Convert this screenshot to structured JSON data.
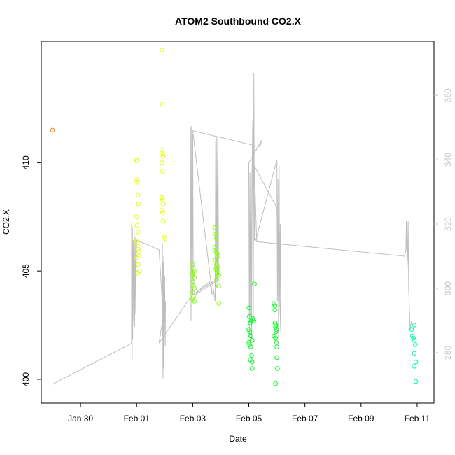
{
  "chart_data": {
    "type": "scatter",
    "title": "ATOM2 Southbound CO2.X",
    "xlabel": "Date",
    "ylabel": "CO2.X",
    "x_ticks": [
      {
        "value": 29.5,
        "label": "Jan 30"
      },
      {
        "value": 31.5,
        "label": "Feb 01"
      },
      {
        "value": 33.5,
        "label": "Feb 03"
      },
      {
        "value": 35.5,
        "label": "Feb 05"
      },
      {
        "value": 37.5,
        "label": "Feb 07"
      },
      {
        "value": 39.5,
        "label": "Feb 09"
      },
      {
        "value": 41.5,
        "label": "Feb 11"
      }
    ],
    "xlim": [
      28.1,
      42.1
    ],
    "ylim": [
      398.9,
      415.6
    ],
    "y_ticks_left": [
      400,
      405,
      410
    ],
    "y2lim": [
      264.3,
      376.8
    ],
    "y2_ticks_right": [
      280,
      300,
      320,
      340,
      360
    ],
    "grid": false,
    "colors": {
      "line": "#bebebe",
      "right_axis": "#c8c8c8",
      "orange": "#ff8000",
      "yellow": "#e6ff00",
      "lime": "#80ff00",
      "green": "#00ff20",
      "teal": "#00ffa0"
    },
    "scatter_series": [
      {
        "color": "#ff8000",
        "points": [
          [
            28.5,
            411.5
          ]
        ]
      },
      {
        "color": "#e6ff00",
        "points": [
          [
            31.5,
            410.1
          ],
          [
            31.52,
            410.1
          ],
          [
            31.5,
            409.2
          ],
          [
            31.53,
            409.1
          ],
          [
            31.55,
            408.5
          ],
          [
            31.57,
            408.1
          ],
          [
            31.5,
            407.5
          ],
          [
            31.52,
            407.1
          ],
          [
            31.55,
            406.8
          ],
          [
            31.5,
            406.4
          ],
          [
            31.53,
            406.3
          ],
          [
            31.56,
            406.0
          ],
          [
            31.58,
            405.9
          ],
          [
            31.6,
            405.7
          ],
          [
            31.52,
            405.6
          ],
          [
            31.56,
            405.3
          ],
          [
            31.6,
            405.0
          ],
          [
            31.54,
            404.9
          ],
          [
            32.4,
            415.2
          ],
          [
            32.42,
            412.7
          ],
          [
            32.4,
            410.6
          ],
          [
            32.43,
            410.4
          ],
          [
            32.45,
            410.3
          ],
          [
            32.4,
            410.0
          ],
          [
            32.43,
            409.6
          ],
          [
            32.4,
            408.4
          ],
          [
            32.43,
            408.3
          ],
          [
            32.45,
            408.1
          ],
          [
            32.4,
            407.8
          ],
          [
            32.43,
            407.7
          ],
          [
            32.45,
            407.3
          ],
          [
            32.5,
            406.6
          ],
          [
            32.52,
            406.5
          ]
        ]
      },
      {
        "color": "#80ff00",
        "points": [
          [
            33.5,
            405.3
          ],
          [
            33.52,
            405.1
          ],
          [
            33.55,
            405.0
          ],
          [
            33.5,
            404.9
          ],
          [
            33.52,
            404.8
          ],
          [
            33.56,
            404.7
          ],
          [
            33.5,
            404.5
          ],
          [
            33.53,
            404.3
          ],
          [
            33.56,
            404.2
          ],
          [
            33.5,
            404.0
          ],
          [
            33.53,
            403.8
          ],
          [
            33.5,
            403.7
          ],
          [
            33.56,
            403.6
          ],
          [
            34.3,
            407.0
          ],
          [
            34.33,
            406.7
          ],
          [
            34.35,
            406.5
          ],
          [
            34.3,
            406.1
          ],
          [
            34.33,
            405.9
          ],
          [
            34.37,
            405.8
          ],
          [
            34.4,
            405.7
          ],
          [
            34.3,
            405.5
          ],
          [
            34.35,
            405.3
          ],
          [
            34.4,
            405.2
          ],
          [
            34.33,
            405.1
          ],
          [
            34.37,
            405.0
          ],
          [
            34.4,
            404.9
          ],
          [
            34.43,
            404.8
          ],
          [
            34.35,
            404.6
          ],
          [
            34.43,
            404.3
          ],
          [
            34.43,
            403.5
          ]
        ]
      },
      {
        "color": "#00ff20",
        "points": [
          [
            35.5,
            403.3
          ],
          [
            35.52,
            402.9
          ],
          [
            35.55,
            402.6
          ],
          [
            35.5,
            402.3
          ],
          [
            35.53,
            402.2
          ],
          [
            35.57,
            402.0
          ],
          [
            35.6,
            402.7
          ],
          [
            35.5,
            401.7
          ],
          [
            35.53,
            401.6
          ],
          [
            35.57,
            401.5
          ],
          [
            35.6,
            401.1
          ],
          [
            35.55,
            400.9
          ],
          [
            35.62,
            400.8
          ],
          [
            35.62,
            400.5
          ],
          [
            35.7,
            404.4
          ],
          [
            35.65,
            402.8
          ],
          [
            35.68,
            402.7
          ],
          [
            35.62,
            401.8
          ],
          [
            36.4,
            403.5
          ],
          [
            36.43,
            403.4
          ],
          [
            36.43,
            403.2
          ],
          [
            36.45,
            402.4
          ],
          [
            36.48,
            402.3
          ],
          [
            36.4,
            402.0
          ],
          [
            36.45,
            401.9
          ],
          [
            36.48,
            401.7
          ],
          [
            36.5,
            401.5
          ],
          [
            36.5,
            401.0
          ],
          [
            36.52,
            400.5
          ],
          [
            36.45,
            399.8
          ],
          [
            36.47,
            402.2
          ],
          [
            36.44,
            402.6
          ],
          [
            36.46,
            402.5
          ]
        ]
      },
      {
        "color": "#00ffa0",
        "points": [
          [
            41.3,
            402.3
          ],
          [
            41.33,
            402.0
          ],
          [
            41.37,
            401.9
          ],
          [
            41.4,
            402.5
          ],
          [
            41.4,
            401.8
          ],
          [
            41.43,
            401.6
          ],
          [
            41.4,
            401.2
          ],
          [
            41.45,
            400.8
          ],
          [
            41.4,
            400.6
          ],
          [
            41.45,
            399.9
          ]
        ]
      }
    ],
    "line_series": {
      "axis": "right",
      "points": [
        [
          28.5,
          270.2
        ],
        [
          31.3,
          282.8
        ],
        [
          31.32,
          283.0
        ],
        [
          31.32,
          320.0
        ],
        [
          31.34,
          278.0
        ],
        [
          31.35,
          319.0
        ],
        [
          31.36,
          284.0
        ],
        [
          31.38,
          315.0
        ],
        [
          31.4,
          290.0
        ],
        [
          31.41,
          320.5
        ],
        [
          31.43,
          288.0
        ],
        [
          31.45,
          316.0
        ],
        [
          31.47,
          292.0
        ],
        [
          31.5,
          315.0
        ],
        [
          32.3,
          312.0
        ],
        [
          32.4,
          298.0
        ],
        [
          32.42,
          314.0
        ],
        [
          32.44,
          272.0
        ],
        [
          32.45,
          308.0
        ],
        [
          32.46,
          275.0
        ],
        [
          32.47,
          310.0
        ],
        [
          32.48,
          280.0
        ],
        [
          32.5,
          304.0
        ],
        [
          32.52,
          282.0
        ],
        [
          32.53,
          296.0
        ],
        [
          32.3,
          283.0
        ],
        [
          33.4,
          297.0
        ],
        [
          33.42,
          350.0
        ],
        [
          33.44,
          290.0
        ],
        [
          33.46,
          350.5
        ],
        [
          33.48,
          295.0
        ],
        [
          33.5,
          348.0
        ],
        [
          33.52,
          301.0
        ],
        [
          33.5,
          298.0
        ],
        [
          34.2,
          302.0
        ],
        [
          34.3,
          296.0
        ],
        [
          34.32,
          346.0
        ],
        [
          34.34,
          300.0
        ],
        [
          34.36,
          347.0
        ],
        [
          34.38,
          302.0
        ],
        [
          34.4,
          346.5
        ],
        [
          34.42,
          304.0
        ],
        [
          34.3,
          302.0
        ],
        [
          33.6,
          298.0
        ],
        [
          33.8,
          300.0
        ],
        [
          34.1,
          302.0
        ],
        [
          34.2,
          298.0
        ],
        [
          33.5,
          349.0
        ],
        [
          35.9,
          344.0
        ],
        [
          35.95,
          346.0
        ],
        [
          35.5,
          339.0
        ],
        [
          35.52,
          285.0
        ],
        [
          35.54,
          336.0
        ],
        [
          35.56,
          290.0
        ],
        [
          35.58,
          337.0
        ],
        [
          35.6,
          284.0
        ],
        [
          35.62,
          338.0
        ],
        [
          35.64,
          352.0
        ],
        [
          35.66,
          290.0
        ],
        [
          35.68,
          367.0
        ],
        [
          35.7,
          315.0
        ],
        [
          35.75,
          315.0
        ],
        [
          36.5,
          340.0
        ],
        [
          36.52,
          296.0
        ],
        [
          36.54,
          334.0
        ],
        [
          36.56,
          284.0
        ],
        [
          36.58,
          338.0
        ],
        [
          36.6,
          297.0
        ],
        [
          36.62,
          320.0
        ],
        [
          36.64,
          286.0
        ],
        [
          36.5,
          325.0
        ],
        [
          35.7,
          338.0
        ],
        [
          35.78,
          314.5
        ],
        [
          41.05,
          310.0
        ],
        [
          41.1,
          312.0
        ],
        [
          41.12,
          321.0
        ],
        [
          41.14,
          306.0
        ],
        [
          41.16,
          310.0
        ],
        [
          41.18,
          321.0
        ],
        [
          41.2,
          300.0
        ],
        [
          41.25,
          287.0
        ],
        [
          41.3,
          290.0
        ]
      ]
    }
  }
}
